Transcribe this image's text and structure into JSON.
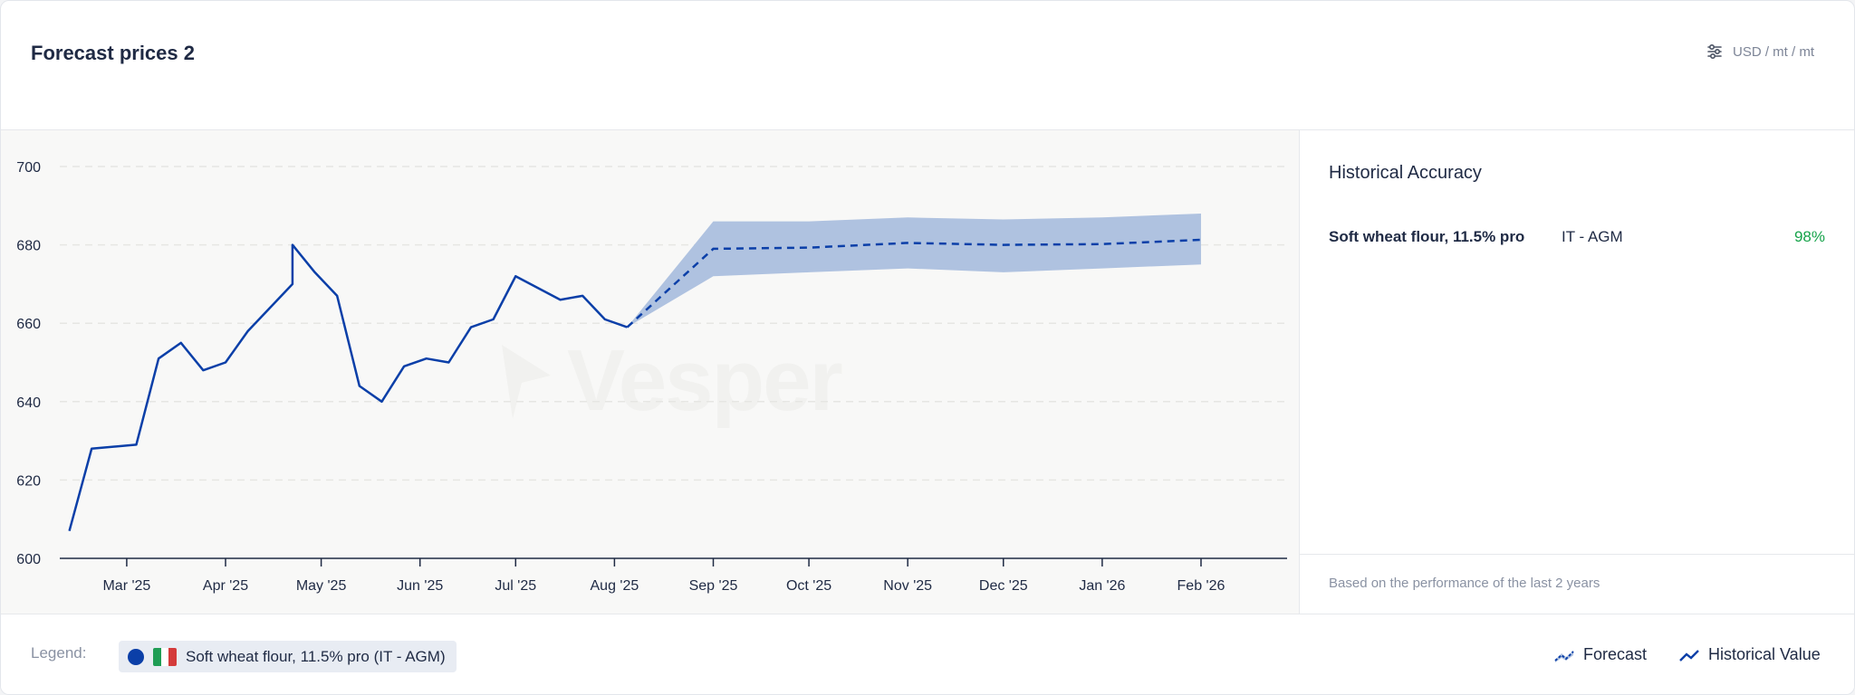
{
  "header": {
    "title": "Forecast prices 2",
    "units_label": "USD / mt / mt",
    "units_icon": "sliders-icon"
  },
  "watermark": {
    "text": "Vesper"
  },
  "accuracy": {
    "title": "Historical Accuracy",
    "rows": [
      {
        "name": "Soft wheat flour, 11.5% pro",
        "location": "IT - AGM",
        "value": "98%"
      }
    ],
    "footer": "Based on the performance of the last 2 years"
  },
  "legend": {
    "label": "Legend:",
    "chip_text": "Soft wheat flour, 11.5% pro (IT - AGM)",
    "chip_color": "#0b3fa8",
    "forecast_label": "Forecast",
    "historical_label": "Historical Value"
  },
  "colors": {
    "line": "#0b3fa8",
    "band": "#afc2e0",
    "grid": "#e6e6e3",
    "axis": "#1f2a44",
    "accuracy_good": "#16a34a"
  },
  "chart_data": {
    "type": "line",
    "xlabel": "",
    "ylabel": "",
    "ylim": [
      600,
      700
    ],
    "yticks": [
      600,
      620,
      640,
      660,
      680,
      700
    ],
    "xlim": [
      "2025-02-08",
      "2026-02-28"
    ],
    "xticks": [
      {
        "date": "2025-03-01",
        "label": "Mar '25"
      },
      {
        "date": "2025-04-01",
        "label": "Apr '25"
      },
      {
        "date": "2025-05-01",
        "label": "May '25"
      },
      {
        "date": "2025-06-01",
        "label": "Jun '25"
      },
      {
        "date": "2025-07-01",
        "label": "Jul '25"
      },
      {
        "date": "2025-08-01",
        "label": "Aug '25"
      },
      {
        "date": "2025-09-01",
        "label": "Sep '25"
      },
      {
        "date": "2025-10-01",
        "label": "Oct '25"
      },
      {
        "date": "2025-11-01",
        "label": "Nov '25"
      },
      {
        "date": "2025-12-01",
        "label": "Dec '25"
      },
      {
        "date": "2026-01-01",
        "label": "Jan '26"
      },
      {
        "date": "2026-02-01",
        "label": "Feb '26"
      }
    ],
    "grid": true,
    "series": [
      {
        "kind": "historical",
        "points": [
          [
            "2025-02-11",
            607
          ],
          [
            "2025-02-18",
            628
          ],
          [
            "2025-03-04",
            629
          ],
          [
            "2025-03-11",
            651
          ],
          [
            "2025-03-18",
            655
          ],
          [
            "2025-03-25",
            648
          ],
          [
            "2025-04-01",
            650
          ],
          [
            "2025-04-08",
            658
          ],
          [
            "2025-04-22",
            670
          ],
          [
            "2025-04-22",
            680
          ],
          [
            "2025-04-29",
            673
          ],
          [
            "2025-05-06",
            667
          ],
          [
            "2025-05-13",
            644
          ],
          [
            "2025-05-20",
            640
          ],
          [
            "2025-05-27",
            649
          ],
          [
            "2025-06-03",
            651
          ],
          [
            "2025-06-10",
            650
          ],
          [
            "2025-06-17",
            659
          ],
          [
            "2025-06-24",
            661
          ],
          [
            "2025-07-01",
            672
          ],
          [
            "2025-07-08",
            669
          ],
          [
            "2025-07-15",
            666
          ],
          [
            "2025-07-22",
            667
          ],
          [
            "2025-07-29",
            661
          ],
          [
            "2025-08-05",
            659
          ]
        ]
      },
      {
        "kind": "forecast",
        "points": [
          [
            "2025-08-05",
            659
          ],
          [
            "2025-09-01",
            679
          ],
          [
            "2025-10-01",
            679.3
          ],
          [
            "2025-11-01",
            680.5
          ],
          [
            "2025-12-01",
            680
          ],
          [
            "2026-01-01",
            680.2
          ],
          [
            "2026-02-01",
            681.3
          ]
        ],
        "upper": [
          [
            "2025-08-05",
            659
          ],
          [
            "2025-09-01",
            686
          ],
          [
            "2025-10-01",
            686
          ],
          [
            "2025-11-01",
            687
          ],
          [
            "2025-12-01",
            686.5
          ],
          [
            "2026-01-01",
            687
          ],
          [
            "2026-02-01",
            688
          ]
        ],
        "lower": [
          [
            "2025-08-05",
            659
          ],
          [
            "2025-09-01",
            672
          ],
          [
            "2025-10-01",
            673
          ],
          [
            "2025-11-01",
            674
          ],
          [
            "2025-12-01",
            673
          ],
          [
            "2026-01-01",
            674
          ],
          [
            "2026-02-01",
            675
          ]
        ]
      }
    ]
  }
}
